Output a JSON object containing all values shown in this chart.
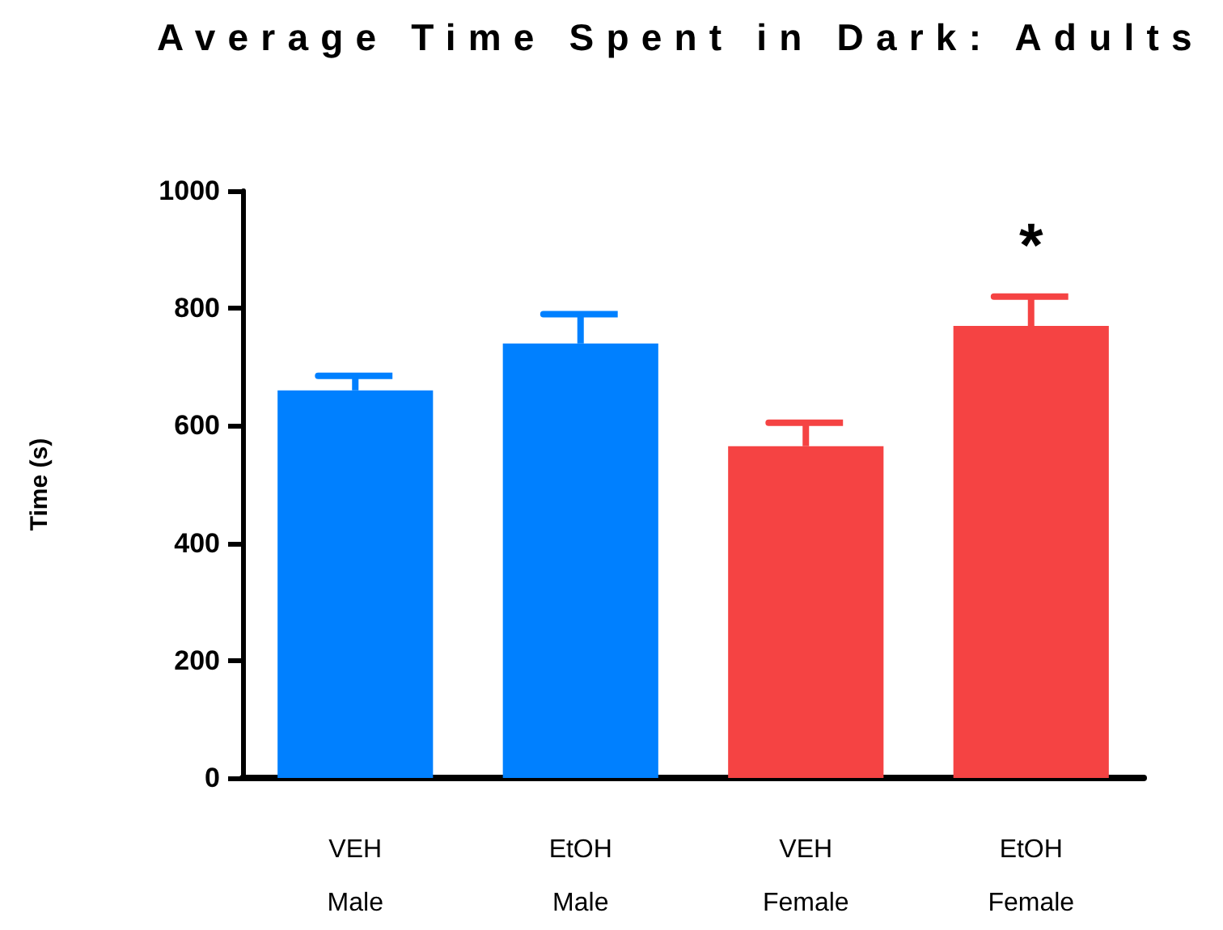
{
  "chart_data": {
    "type": "bar",
    "title": "Average Time Spent in Dark: Adults",
    "ylabel": "Time (s)",
    "categories": [
      "VEH\nMale",
      "EtOH\nMale",
      "VEH\nFemale",
      "EtOH\nFemale"
    ],
    "values": [
      660,
      740,
      565,
      770
    ],
    "colors": [
      "#0080ff",
      "#0080ff",
      "#f54343",
      "#f54343"
    ],
    "errors": [
      [
        660,
        685
      ],
      [
        740,
        790
      ],
      [
        565,
        605
      ],
      [
        770,
        820
      ]
    ],
    "ylim": [
      0,
      1000
    ],
    "yticks": [
      0,
      200,
      400,
      600,
      800,
      1000
    ],
    "annotations": [
      "*"
    ]
  }
}
